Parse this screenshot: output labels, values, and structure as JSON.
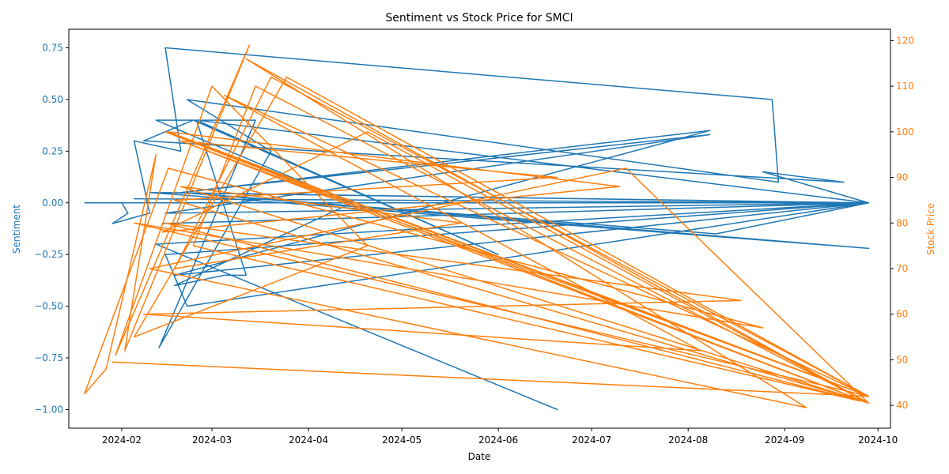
{
  "chart_data": {
    "type": "line",
    "title": "Sentiment vs Stock Price for SMCI",
    "xlabel": "Date",
    "ylabel_left": "Sentiment",
    "ylabel_right": "Stock Price",
    "x_ticks": [
      "2024-02",
      "2024-03",
      "2024-04",
      "2024-05",
      "2024-06",
      "2024-07",
      "2024-08",
      "2024-09",
      "2024-10"
    ],
    "y_left_ticks": [
      "0.75",
      "0.50",
      "0.25",
      "0.00",
      "−0.25",
      "−0.50",
      "−0.75",
      "−1.00"
    ],
    "y_right_ticks": [
      "120",
      "110",
      "100",
      "90",
      "80",
      "70",
      "60",
      "50",
      "40"
    ],
    "xlim": [
      "2024-01-15",
      "2024-10-05"
    ],
    "ylim_left": [
      -1.09,
      0.84
    ],
    "ylim_right": [
      35,
      122.5
    ],
    "grid": false,
    "colors": {
      "sentiment": "#1f77b4",
      "price": "#ff7f0e",
      "axis": "#000000"
    },
    "series": [
      {
        "name": "Sentiment",
        "axis": "left",
        "color": "#1f77b4",
        "points": [
          [
            "2024-01-20",
            0.0
          ],
          [
            "2024-02-01",
            0.0
          ],
          [
            "2024-02-03",
            -0.05
          ],
          [
            "2024-01-29",
            -0.1
          ],
          [
            "2024-02-10",
            -0.05
          ],
          [
            "2024-02-05",
            0.3
          ],
          [
            "2024-02-20",
            0.25
          ],
          [
            "2024-02-15",
            0.75
          ],
          [
            "2024-08-28",
            0.5
          ],
          [
            "2024-08-30",
            0.1
          ],
          [
            "2024-02-22",
            0.5
          ],
          [
            "2024-03-20",
            0.25
          ],
          [
            "2024-02-13",
            -0.7
          ],
          [
            "2024-03-15",
            0.4
          ],
          [
            "2024-02-12",
            0.4
          ],
          [
            "2024-04-15",
            0.0
          ],
          [
            "2024-02-18",
            -0.4
          ],
          [
            "2024-03-05",
            -0.35
          ],
          [
            "2024-03-12",
            -0.35
          ],
          [
            "2024-02-25",
            0.4
          ],
          [
            "2024-06-01",
            -0.25
          ],
          [
            "2024-02-24",
            0.4
          ],
          [
            "2024-02-08",
            0.3
          ],
          [
            "2024-09-20",
            0.1
          ],
          [
            "2024-08-25",
            0.15
          ],
          [
            "2024-09-28",
            0.0
          ],
          [
            "2024-01-25",
            0.0
          ],
          [
            "2024-09-28",
            0.0
          ],
          [
            "2024-02-18",
            -0.35
          ],
          [
            "2024-08-08",
            0.35
          ],
          [
            "2024-02-20",
            0.05
          ],
          [
            "2024-08-08",
            0.33
          ],
          [
            "2024-02-15",
            -0.05
          ],
          [
            "2024-09-28",
            0.0
          ],
          [
            "2024-02-12",
            -0.2
          ],
          [
            "2024-06-20",
            -1.0
          ],
          [
            "2024-02-12",
            -0.2
          ],
          [
            "2024-09-28",
            0.0
          ],
          [
            "2024-02-25",
            0.4
          ],
          [
            "2024-09-28",
            0.0
          ],
          [
            "2024-02-22",
            -0.5
          ],
          [
            "2024-02-15",
            -0.25
          ],
          [
            "2024-09-28",
            0.0
          ],
          [
            "2024-02-14",
            0.05
          ],
          [
            "2024-09-28",
            0.0
          ],
          [
            "2024-08-10",
            -0.15
          ],
          [
            "2024-02-20",
            0.05
          ],
          [
            "2024-09-28",
            -0.22
          ],
          [
            "2024-02-10",
            0.05
          ],
          [
            "2024-09-28",
            0.0
          ],
          [
            "2024-01-22",
            0.0
          ],
          [
            "2024-09-28",
            0.0
          ],
          [
            "2024-02-05",
            0.02
          ],
          [
            "2024-09-28",
            0.0
          ],
          [
            "2024-02-14",
            -0.1
          ],
          [
            "2024-09-28",
            0.0
          ],
          [
            "2024-01-20",
            0.0
          ]
        ]
      },
      {
        "name": "Stock Price",
        "axis": "right",
        "color": "#ff7f0e",
        "points": [
          [
            "2024-01-20",
            42.5
          ],
          [
            "2024-01-27",
            48.0
          ],
          [
            "2024-02-12",
            95.0
          ],
          [
            "2024-02-02",
            52.0
          ],
          [
            "2024-03-13",
            119.0
          ],
          [
            "2024-01-30",
            51.0
          ],
          [
            "2024-03-01",
            110.0
          ],
          [
            "2024-04-20",
            75.0
          ],
          [
            "2024-02-05",
            55.0
          ],
          [
            "2024-03-25",
            112.0
          ],
          [
            "2024-09-28",
            42.0
          ],
          [
            "2024-02-15",
            100.0
          ],
          [
            "2024-09-28",
            40.5
          ],
          [
            "2024-03-12",
            116.0
          ],
          [
            "2024-09-08",
            39.5
          ],
          [
            "2024-02-10",
            70.0
          ],
          [
            "2024-07-12",
            92.0
          ],
          [
            "2024-09-28",
            40.5
          ],
          [
            "2024-02-20",
            98.0
          ],
          [
            "2024-09-28",
            42.0
          ],
          [
            "2024-01-29",
            49.5
          ],
          [
            "2024-09-28",
            42.0
          ],
          [
            "2024-03-05",
            108.0
          ],
          [
            "2024-08-05",
            52.0
          ],
          [
            "2024-02-08",
            60.0
          ],
          [
            "2024-08-18",
            63.0
          ],
          [
            "2024-02-15",
            80.0
          ],
          [
            "2024-09-25",
            41.0
          ],
          [
            "2024-02-24",
            75.0
          ],
          [
            "2024-03-15",
            110.0
          ],
          [
            "2024-09-28",
            40.5
          ],
          [
            "2024-02-18",
            85.0
          ],
          [
            "2024-06-20",
            90.0
          ],
          [
            "2024-02-20",
            98.0
          ],
          [
            "2024-09-28",
            42.0
          ],
          [
            "2024-02-16",
            100.0
          ],
          [
            "2024-07-10",
            88.0
          ],
          [
            "2024-02-14",
            78.0
          ],
          [
            "2024-04-20",
            100.0
          ],
          [
            "2024-09-28",
            40.5
          ],
          [
            "2024-02-20",
            88.0
          ],
          [
            "2024-05-20",
            80.0
          ],
          [
            "2024-02-18",
            70.0
          ],
          [
            "2024-03-20",
            112.0
          ],
          [
            "2024-09-28",
            42.0
          ],
          [
            "2024-02-05",
            80.0
          ],
          [
            "2024-08-25",
            57.0
          ],
          [
            "2024-02-16",
            92.0
          ],
          [
            "2024-01-20",
            42.5
          ]
        ]
      }
    ]
  }
}
